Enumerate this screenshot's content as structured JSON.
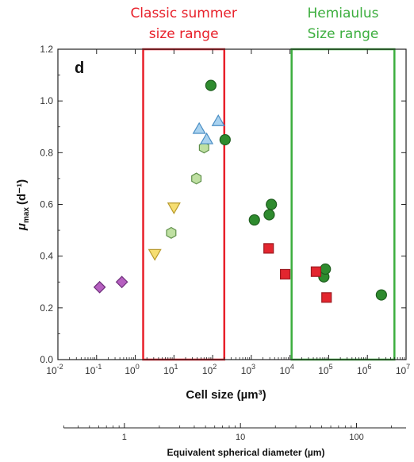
{
  "chart_data": {
    "type": "scatter",
    "panel_label": "d",
    "xscale": "log",
    "xlim": [
      0.01,
      10000000
    ],
    "ylim": [
      0.0,
      1.2
    ],
    "xlabel": "Cell size (µm³)",
    "ylabel": {
      "main": "μ",
      "sub": "max",
      "unit": "(d⁻¹)"
    },
    "x_ticks": [
      {
        "value": 0.01,
        "base": "10",
        "exp": "-2"
      },
      {
        "value": 0.1,
        "base": "10",
        "exp": "-1"
      },
      {
        "value": 1,
        "base": "10",
        "exp": "0"
      },
      {
        "value": 10,
        "base": "10",
        "exp": "1"
      },
      {
        "value": 100,
        "base": "10",
        "exp": "2"
      },
      {
        "value": 1000,
        "base": "10",
        "exp": "3"
      },
      {
        "value": 10000,
        "base": "10",
        "exp": "4"
      },
      {
        "value": 100000,
        "base": "10",
        "exp": "5"
      },
      {
        "value": 1000000,
        "base": "10",
        "exp": "6"
      },
      {
        "value": 10000000,
        "base": "10",
        "exp": "7"
      }
    ],
    "y_ticks": [
      "0.0",
      "0.2",
      "0.4",
      "0.6",
      "0.8",
      "1.0",
      "1.2"
    ],
    "secondary_axis": {
      "label": "Equivalent spherical diameter (µm)",
      "ticks": [
        "1",
        "10",
        "100"
      ]
    },
    "ranges": [
      {
        "label_lines": [
          "Classic summer",
          "size range"
        ],
        "x_from": 1.6,
        "x_to": 200,
        "color": "#e8202a"
      },
      {
        "label_lines": [
          "Hemiaulus",
          "Size range"
        ],
        "x_from": 11000,
        "x_to": 5000000,
        "color": "#3cae3e"
      }
    ],
    "series": [
      {
        "marker": "diamond",
        "fill": "#b65fc0",
        "stroke": "#6d2f7a",
        "points": [
          [
            0.12,
            0.28
          ],
          [
            0.45,
            0.3
          ]
        ]
      },
      {
        "marker": "triangle-down",
        "fill": "#f6de72",
        "stroke": "#b89a2c",
        "points": [
          [
            3.2,
            0.41
          ],
          [
            10,
            0.59
          ]
        ]
      },
      {
        "marker": "hexagon",
        "fill": "#bfe0a2",
        "stroke": "#5f8f4a",
        "points": [
          [
            8.5,
            0.49
          ],
          [
            38,
            0.7
          ],
          [
            60,
            0.82
          ]
        ]
      },
      {
        "marker": "triangle-up",
        "fill": "#a9d2ef",
        "stroke": "#4a8ec4",
        "points": [
          [
            45,
            0.89
          ],
          [
            70,
            0.85
          ],
          [
            140,
            0.92
          ]
        ]
      },
      {
        "marker": "circle",
        "fill": "#2e8b2e",
        "stroke": "#1e5e1e",
        "points": [
          [
            90,
            1.06
          ],
          [
            210,
            0.85
          ],
          [
            1200,
            0.54
          ],
          [
            2900,
            0.56
          ],
          [
            3300,
            0.6
          ],
          [
            75000,
            0.32
          ],
          [
            82000,
            0.35
          ],
          [
            2300000,
            0.25
          ]
        ]
      },
      {
        "marker": "square",
        "fill": "#e3262f",
        "stroke": "#9c1a20",
        "points": [
          [
            2800,
            0.43
          ],
          [
            7500,
            0.33
          ],
          [
            47000,
            0.34
          ],
          [
            88000,
            0.24
          ]
        ]
      }
    ]
  }
}
